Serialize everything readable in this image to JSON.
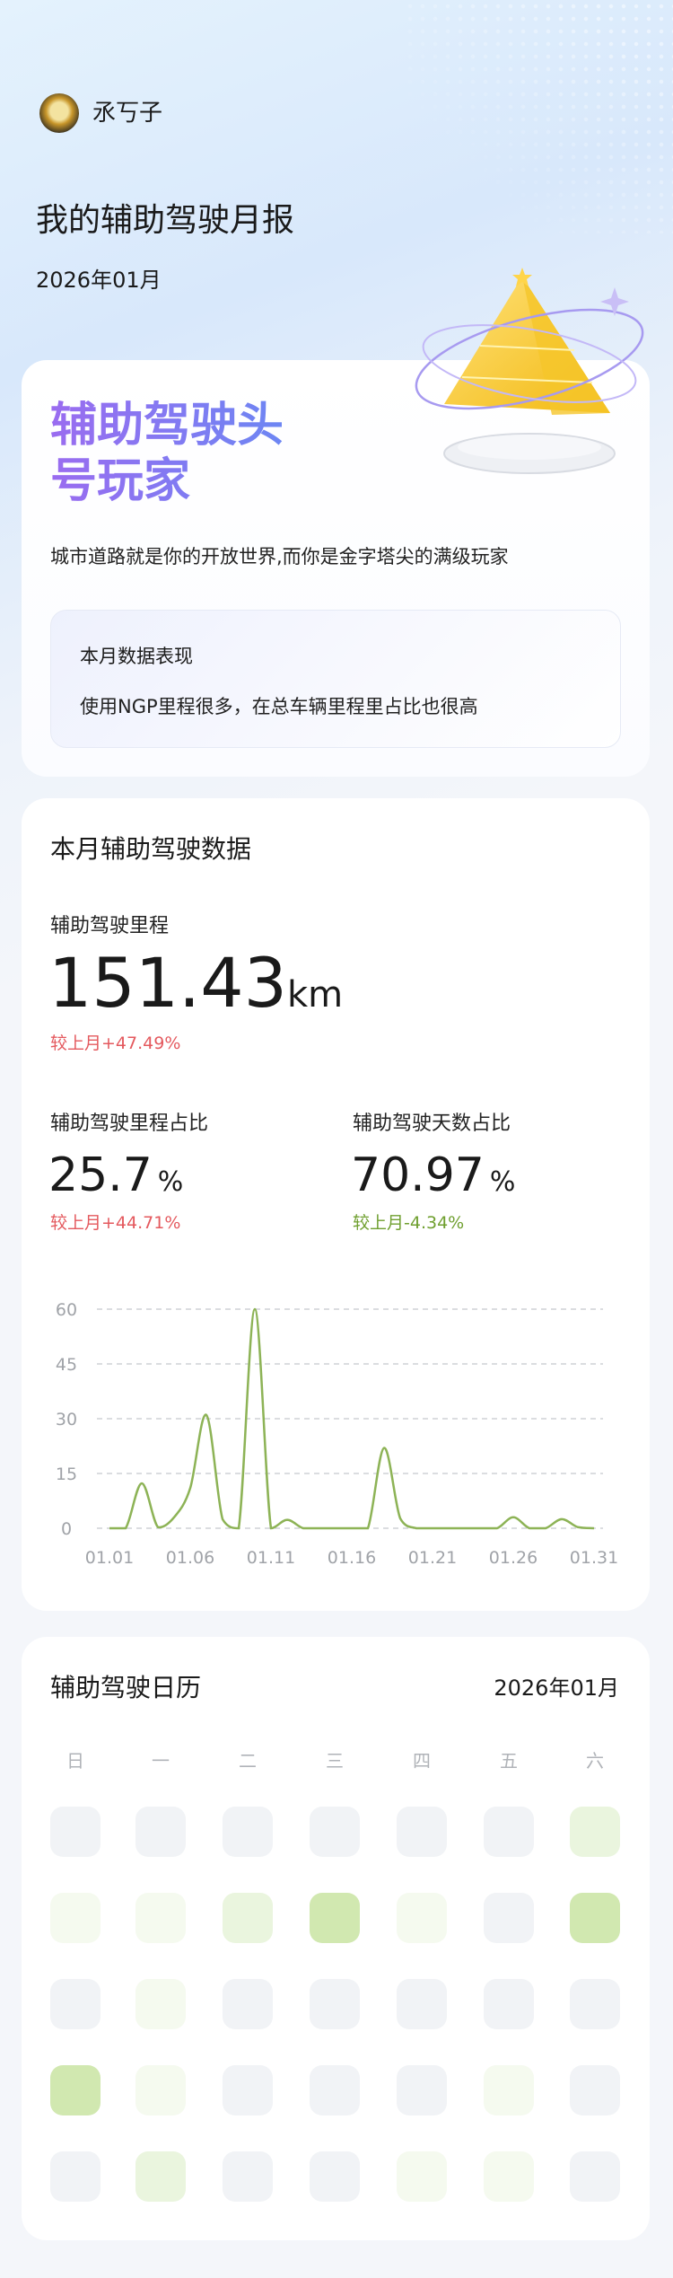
{
  "header": {
    "username": "氶丂子",
    "title": "我的辅助驾驶月报",
    "month": "2026年01月"
  },
  "badge": {
    "title_line1": "辅助驾驶头",
    "title_line2": "号玩家",
    "subtitle": "城市道路就是你的开放世界,而你是金字塔尖的满级玩家",
    "summary_heading": "本月数据表现",
    "summary_text": "使用NGP里程很多，在总车辆里程里占比也很高",
    "icon": "golden-pyramid-trophy"
  },
  "stats": {
    "section_title": "本月辅助驾驶数据",
    "mileage": {
      "label": "辅助驾驶里程",
      "value": "151.43",
      "unit": "km",
      "change": "较上月+47.49%"
    },
    "mileage_ratio": {
      "label": "辅助驾驶里程占比",
      "value": "25.7",
      "unit": "%",
      "change": "较上月+44.71%"
    },
    "days_ratio": {
      "label": "辅助驾驶天数占比",
      "value": "70.97",
      "unit": "%",
      "change": "较上月-4.34%"
    },
    "colors": {
      "increase": "#e4595e",
      "decrease": "#6f9f2f"
    }
  },
  "chart_data": {
    "type": "line",
    "title": "",
    "xlabel": "",
    "ylabel": "",
    "ylim": [
      0,
      60
    ],
    "yticks": [
      "0",
      "15",
      "30",
      "45",
      "60"
    ],
    "xticks": [
      "01.01",
      "01.06",
      "01.11",
      "01.16",
      "01.21",
      "01.26",
      "01.31"
    ],
    "grid": "horizontal-dashed",
    "line_color": "#8db356",
    "smooth": true,
    "x": [
      "01.01",
      "01.02",
      "01.03",
      "01.04",
      "01.05",
      "01.06",
      "01.07",
      "01.08",
      "01.09",
      "01.10",
      "01.11",
      "01.12",
      "01.13",
      "01.14",
      "01.15",
      "01.16",
      "01.17",
      "01.18",
      "01.19",
      "01.20",
      "01.21",
      "01.22",
      "01.23",
      "01.24",
      "01.25",
      "01.26",
      "01.27",
      "01.28",
      "01.29",
      "01.30",
      "01.31"
    ],
    "values": [
      0,
      0,
      12.3,
      0.3,
      3,
      11,
      31,
      2.5,
      0,
      60,
      0,
      2.3,
      0,
      0,
      0,
      0,
      0,
      22,
      2.7,
      0,
      0,
      0,
      0,
      0,
      0,
      3,
      0,
      0,
      2.5,
      0.3,
      0
    ]
  },
  "calendar": {
    "title": "辅助驾驶日历",
    "month": "2026年01月",
    "weekdays": [
      "日",
      "一",
      "二",
      "三",
      "四",
      "五",
      "六"
    ],
    "level_colors": [
      "#f1f3f6",
      "#f5faef",
      "#eaf5de",
      "#d1e8b0"
    ],
    "levels": [
      0,
      0,
      0,
      0,
      0,
      0,
      2,
      1,
      1,
      2,
      3,
      1,
      0,
      3,
      0,
      1,
      0,
      0,
      0,
      0,
      0,
      3,
      1,
      0,
      0,
      0,
      1,
      0,
      0,
      2,
      0,
      0,
      1,
      1,
      0
    ]
  }
}
